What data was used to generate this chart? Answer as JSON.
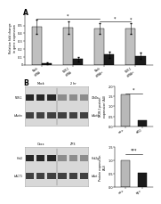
{
  "panel_A": {
    "groups": [
      {
        "label": "Mock\nsiRNA",
        "gray": 0.48,
        "black": 0.02
      },
      {
        "label": "NOR-1\nsiRNA",
        "gray": 0.47,
        "black": 0.07
      },
      {
        "label": "Mock\nsiRNA+",
        "gray": 0.46,
        "black": 0.13
      },
      {
        "label": "NOR-1\nsiRNA+",
        "gray": 0.46,
        "black": 0.11
      }
    ],
    "ylabel": "Relative fold change\nin gene expression",
    "ylim": [
      0,
      0.65
    ],
    "yticks": [
      0,
      0.1,
      0.2,
      0.3,
      0.4,
      0.5
    ],
    "gray_color": "#c0c0c0",
    "black_color": "#1a1a1a",
    "error_gray": [
      0.09,
      0.08,
      0.07,
      0.07
    ],
    "error_black": [
      0.01,
      0.03,
      0.04,
      0.04
    ]
  },
  "panel_B_top": {
    "blot_groups": [
      "Mock",
      "2 hr"
    ],
    "blot_lanes": 6,
    "bands": [
      {
        "name": "NOR-1",
        "kDa": "70kDa",
        "dark_lanes": [
          0,
          1,
          2
        ],
        "light_lanes": [
          3,
          4,
          5
        ]
      },
      {
        "name": "b-Actin",
        "kDa": "b-Actin",
        "dark_lanes": [
          0,
          1,
          2,
          3,
          4,
          5
        ],
        "light_lanes": []
      }
    ],
    "bar_data": [
      {
        "label": "wt+",
        "value": 1.6,
        "color": "#b8b8b8"
      },
      {
        "label": "cKO",
        "value": 0.32,
        "color": "#1a1a1a"
      }
    ],
    "ylabel": "NOR-1 protein\nexpression (AU)",
    "ylim": [
      0,
      2.0
    ],
    "yticks": [
      0.0,
      0.5,
      1.0,
      1.5,
      2.0
    ],
    "sig": "*"
  },
  "panel_B_bot": {
    "blot_groups": [
      "Oocx",
      "ZP3"
    ],
    "blot_lanes": 6,
    "bands": [
      {
        "name": "Hnk2",
        "kDa": "Hnk2g",
        "dark_lanes": [
          0,
          1,
          2
        ],
        "light_lanes": [
          3,
          4,
          5
        ]
      },
      {
        "name": "b-ACT1",
        "kDa": "b-Act",
        "dark_lanes": [
          0,
          1,
          2,
          3,
          4,
          5
        ],
        "light_lanes": []
      }
    ],
    "bar_data": [
      {
        "label": "wt+",
        "value": 1.0,
        "color": "#b8b8b8"
      },
      {
        "label": "cg+",
        "value": 0.55,
        "color": "#1a1a1a"
      }
    ],
    "ylabel": "Protein expression\n(AU)",
    "ylim": [
      0,
      1.5
    ],
    "yticks": [
      0.0,
      0.5,
      1.0,
      1.5
    ],
    "sig": "***"
  },
  "background_color": "#ffffff",
  "label_A": "A",
  "label_B": "B"
}
